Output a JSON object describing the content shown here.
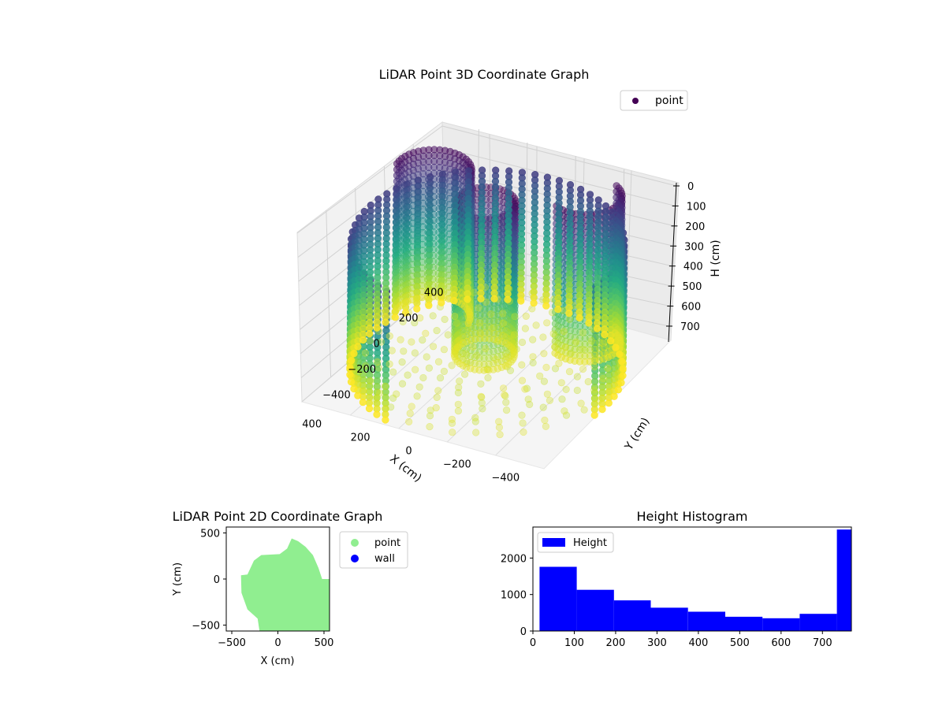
{
  "chart_data": [
    {
      "type": "scatter",
      "projection": "3d",
      "title": "LiDAR Point 3D Coordinate Graph",
      "xlabel": "X (cm)",
      "ylabel": "Y (cm)",
      "zlabel": "H (cm)",
      "x_ticks": [
        "−400",
        "−200",
        "0",
        "200",
        "400"
      ],
      "y_ticks": [
        "−400",
        "−200",
        "0",
        "200",
        "400"
      ],
      "z_ticks": [
        "0",
        "100",
        "200",
        "300",
        "400",
        "500",
        "600",
        "700"
      ],
      "zlim": [
        0,
        760
      ],
      "z_inverted": true,
      "colormap": "viridis",
      "legend": {
        "labels": [
          "point"
        ],
        "placement": "top-right"
      },
      "structure": {
        "outer_wall": {
          "radius_cm": 500,
          "arc_start_deg": -70,
          "arc_end_deg": 190,
          "height_range": [
            0,
            620
          ]
        },
        "central_column": {
          "center": [
            40,
            60
          ],
          "radius_cm": 110,
          "height_range": [
            0,
            760
          ]
        },
        "left_arm": {
          "center": [
            -250,
            300
          ],
          "radius_cm": 130,
          "height_range": [
            0,
            740
          ]
        },
        "right_arm": {
          "center": [
            330,
            200
          ],
          "radius_cm": 140,
          "height_range": [
            0,
            740
          ]
        },
        "floor_radius_cm": 500
      }
    },
    {
      "type": "scatter",
      "title": "LiDAR Point 2D Coordinate Graph",
      "xlabel": "X (cm)",
      "ylabel": "Y (cm)",
      "xlim": [
        -560,
        560
      ],
      "ylim": [
        -560,
        560
      ],
      "x_ticks": [
        "−500",
        "0",
        "500"
      ],
      "y_ticks": [
        "500",
        "0",
        "−500"
      ],
      "legend": {
        "labels": [
          "point",
          "wall"
        ],
        "placement": "outside-right"
      },
      "series": [
        {
          "name": "point",
          "color": "#90ee90"
        },
        {
          "name": "wall",
          "color": "#0000ff"
        }
      ]
    },
    {
      "type": "bar",
      "subtype": "histogram",
      "title": "Height Histogram",
      "xlim": [
        0,
        770
      ],
      "ylim": [
        0,
        2850
      ],
      "x_ticks": [
        "0",
        "100",
        "200",
        "300",
        "400",
        "500",
        "600",
        "700"
      ],
      "y_ticks": [
        "0",
        "1000",
        "2000"
      ],
      "legend": {
        "labels": [
          "Height"
        ],
        "placement": "top-left"
      },
      "bin_edges": [
        16,
        106,
        196,
        285,
        375,
        465,
        555,
        645,
        735,
        770
      ],
      "values": [
        1760,
        1130,
        840,
        640,
        530,
        390,
        350,
        470,
        2780
      ],
      "color": "#0000ff"
    }
  ]
}
